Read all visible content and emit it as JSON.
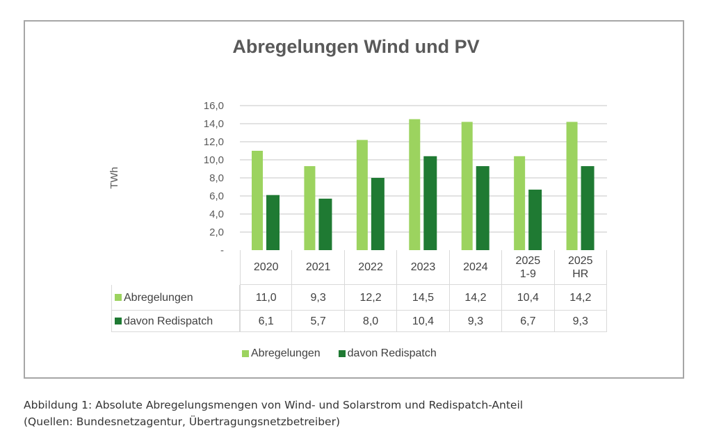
{
  "chart_data": {
    "type": "bar",
    "title": "Abregelungen Wind und PV",
    "ylabel": "TWh",
    "xlabel": "",
    "ylim": [
      0,
      16
    ],
    "yticks": [
      "-",
      "2,0",
      "4,0",
      "6,0",
      "8,0",
      "10,0",
      "12,0",
      "14,0",
      "16,0"
    ],
    "grid": true,
    "legend_position": "bottom",
    "categories": [
      [
        "2020"
      ],
      [
        "2021"
      ],
      [
        "2022"
      ],
      [
        "2023"
      ],
      [
        "2024"
      ],
      [
        "2025",
        "1-9"
      ],
      [
        "2025",
        "HR"
      ]
    ],
    "series": [
      {
        "name": "Abregelungen",
        "color": "#9cd35f",
        "values": [
          11.0,
          9.3,
          12.2,
          14.5,
          14.2,
          10.4,
          14.2
        ],
        "labels": [
          "11,0",
          "9,3",
          "12,2",
          "14,5",
          "14,2",
          "10,4",
          "14,2"
        ]
      },
      {
        "name": "davon Redispatch",
        "color": "#1f7a33",
        "values": [
          6.1,
          5.7,
          8.0,
          10.4,
          9.3,
          6.7,
          9.3
        ],
        "labels": [
          "6,1",
          "5,7",
          "8,0",
          "10,4",
          "9,3",
          "6,7",
          "9,3"
        ]
      }
    ]
  },
  "caption": {
    "line1": "Abbildung 1: Absolute Abregelungsmengen von Wind- und Solarstrom und Redispatch-Anteil",
    "line2": "(Quellen: Bundesnetzagentur, Übertragungsnetzbetreiber)"
  }
}
